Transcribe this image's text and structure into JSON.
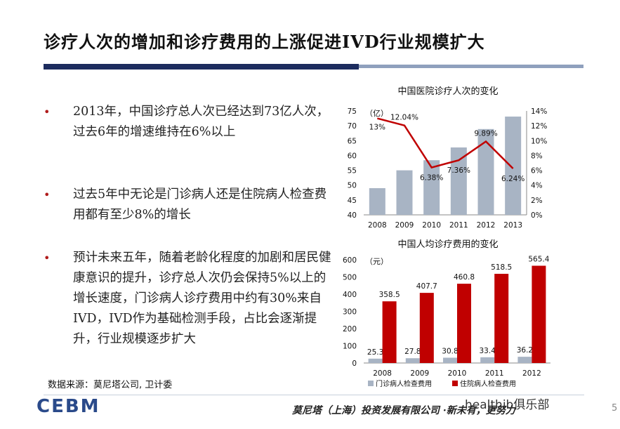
{
  "title": "诊疗人次的增加和诊疗费用的上涨促进IVD行业规模扩大",
  "bullets": [
    "2013年，中国诊疗总人次已经达到73亿人次，过去6年的增速维持在6%以上",
    "过去5年中无论是门诊病人还是住院病人检查费用都有至少8%的增长",
    "预计未来五年，随着老龄化程度的加剧和居民健康意识的提升，诊疗总人次仍会保持5%以上的增长速度，门诊病人诊疗费用中约有30%来自IVD，IVD作为基础检测手段，占比会逐渐提升，行业规模逐步扩大"
  ],
  "source": "数据来源：莫尼塔公司, 卫计委",
  "logo": "CEBM",
  "footer": "莫尼塔（上海）投资发展有限公司 ·新未有，更努力",
  "watermark": "healthib俱乐部",
  "page_number": "5",
  "colors": {
    "bar_grey": "#a8b4c4",
    "bar_red": "#c00000",
    "line_red": "#c00000",
    "title_bar": "#1c2c5e"
  },
  "chart_data": [
    {
      "type": "bar+line",
      "title": "中国医院诊疗人次的变化",
      "unit_label": "（亿）",
      "categories": [
        "2008",
        "2009",
        "2010",
        "2011",
        "2012",
        "2013"
      ],
      "bars": {
        "values": [
          49,
          55,
          58.4,
          62.7,
          68.9,
          73.1
        ]
      },
      "line": {
        "values": [
          13,
          12.04,
          6.38,
          7.36,
          9.89,
          6.24
        ],
        "labels": [
          "13%",
          "12.04%",
          "6.38%",
          "7.36%",
          "9.89%",
          "6.24%"
        ]
      },
      "ylim_left": [
        40,
        75
      ],
      "yticks_left": [
        "40",
        "45",
        "50",
        "55",
        "60",
        "65",
        "70",
        "75"
      ],
      "ylim_right": [
        0,
        14
      ],
      "yticks_right": [
        "0%",
        "2%",
        "4%",
        "6%",
        "8%",
        "10%",
        "12%",
        "14%"
      ]
    },
    {
      "type": "bar",
      "title": "中国人均诊疗费用的变化",
      "unit_label": "（元）",
      "categories": [
        "2008",
        "2009",
        "2010",
        "2011",
        "2012"
      ],
      "series": [
        {
          "name": "门诊病人检查费用",
          "values": [
            25.3,
            27.8,
            30.8,
            33.4,
            36.2
          ],
          "labels": [
            "25.3",
            "27.8",
            "30.8",
            "33.4",
            "36.2"
          ]
        },
        {
          "name": "住院病人检查费用",
          "values": [
            358.5,
            407.7,
            460.8,
            518.5,
            565.4
          ],
          "labels": [
            "358.5",
            "407.7",
            "460.8",
            "518.5",
            "565.4"
          ]
        }
      ],
      "ylim": [
        0,
        600
      ],
      "yticks": [
        "0",
        "100",
        "200",
        "300",
        "400",
        "500",
        "600"
      ],
      "legend": "bottom"
    }
  ]
}
